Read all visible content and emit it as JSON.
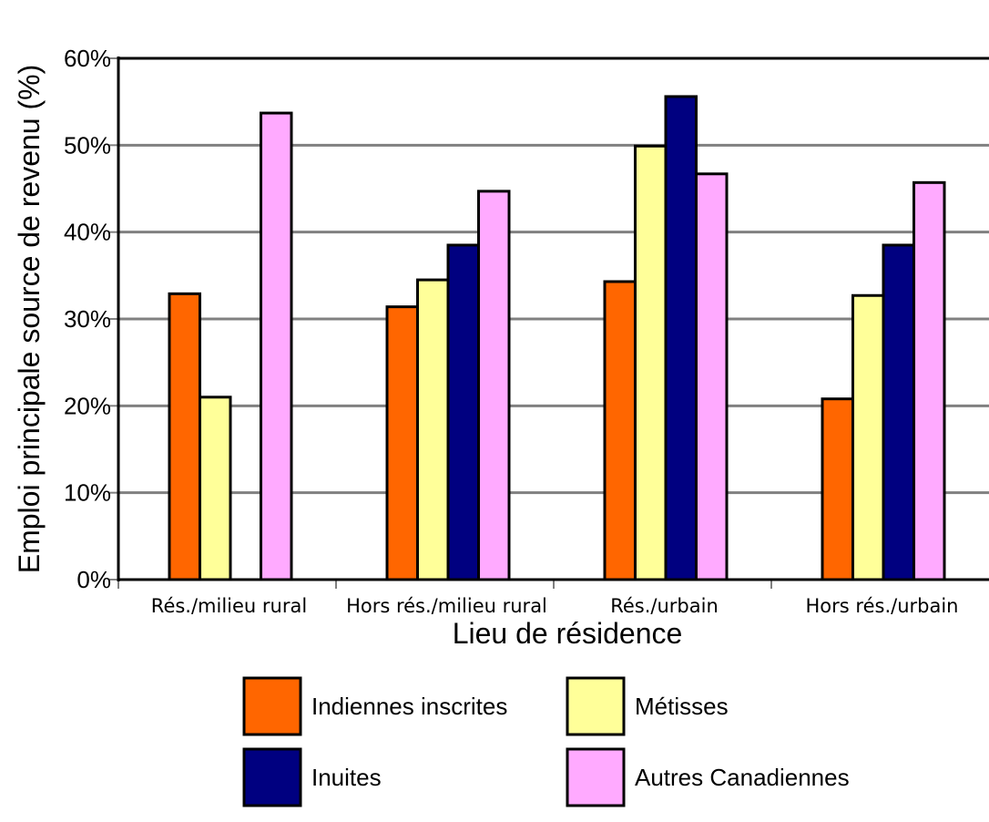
{
  "chart_data": {
    "type": "bar",
    "xlabel": "Lieu de résidence",
    "ylabel": "Emploi principale source de revenu (%)",
    "ylim": [
      0,
      60
    ],
    "yticks": [
      "0%",
      "10%",
      "20%",
      "30%",
      "40%",
      "50%",
      "60%"
    ],
    "grid": true,
    "legend_position": "bottom",
    "categories": [
      "Rés./milieu rural",
      "Hors rés./milieu rural",
      "Rés./urbain",
      "Hors rés./urbain"
    ],
    "series": [
      {
        "name": "Indiennes inscrites",
        "color": "#ff6600",
        "values": [
          32.9,
          31.4,
          34.3,
          20.8
        ]
      },
      {
        "name": "Métisses",
        "color": "#ffff99",
        "values": [
          21.0,
          34.5,
          49.9,
          32.7
        ]
      },
      {
        "name": "Inuites",
        "color": "#000080",
        "values": [
          null,
          38.5,
          55.6,
          38.5
        ]
      },
      {
        "name": "Autres Canadiennes",
        "color": "#ffaaff",
        "values": [
          53.7,
          44.7,
          46.7,
          45.7
        ]
      }
    ]
  }
}
